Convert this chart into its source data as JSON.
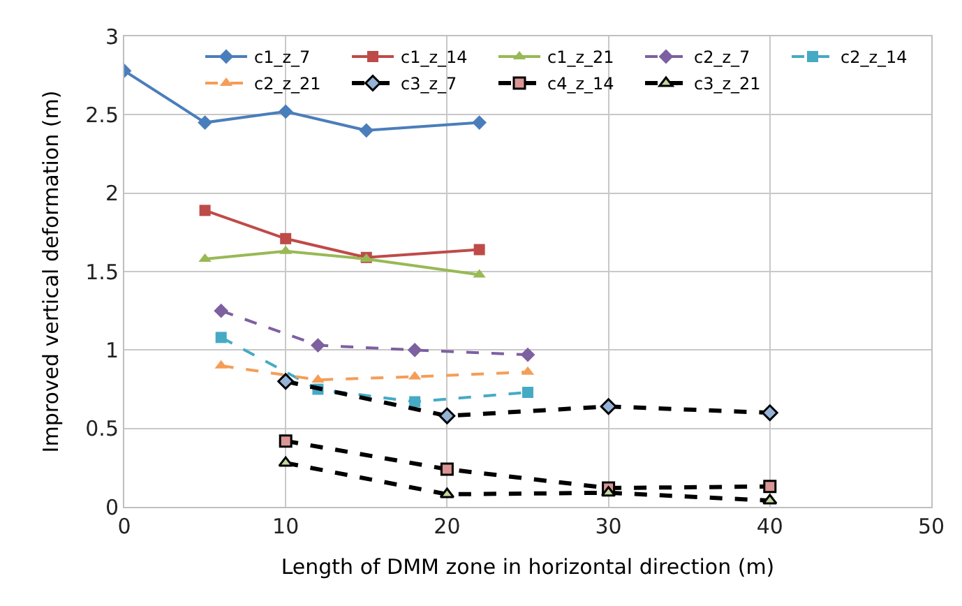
{
  "chart_data": {
    "type": "line",
    "xlabel": "Length of DMM zone in horizontal direction (m)",
    "ylabel": "Improved vertical deformation (m)",
    "xlim": [
      0,
      50
    ],
    "xticks": [
      0,
      10,
      20,
      30,
      40,
      50
    ],
    "ylim": [
      0,
      3
    ],
    "yticks": [
      0,
      0.5,
      1,
      1.5,
      2,
      2.5,
      3
    ],
    "grid": true,
    "legend": "top right",
    "series": [
      {
        "name": "c1_z_7",
        "color": "#4a7ebb",
        "x": [
          0,
          5,
          10,
          15,
          22
        ],
        "values": [
          2.78,
          2.45,
          2.52,
          2.4,
          2.45
        ],
        "marker": "diamond",
        "line_style": "solid"
      },
      {
        "name": "c1_z_14",
        "color": "#be4b48",
        "x": [
          5,
          10,
          15,
          22
        ],
        "values": [
          1.89,
          1.71,
          1.59,
          1.64
        ],
        "marker": "square",
        "line_style": "solid"
      },
      {
        "name": "c1_z_21",
        "color": "#98b954",
        "x": [
          5,
          10,
          15,
          22
        ],
        "values": [
          1.58,
          1.63,
          1.58,
          1.48
        ],
        "marker": "triangle",
        "line_style": "solid"
      },
      {
        "name": "c2_z_7",
        "color": "#7d60a0",
        "x": [
          6,
          12,
          18,
          25
        ],
        "values": [
          1.25,
          1.03,
          1.0,
          0.97
        ],
        "marker": "diamond",
        "line_style": "dashed"
      },
      {
        "name": "c2_z_14",
        "color": "#46aac5",
        "x": [
          6,
          12,
          18,
          25
        ],
        "values": [
          1.08,
          0.75,
          0.67,
          0.73
        ],
        "marker": "square",
        "line_style": "dashed"
      },
      {
        "name": "c2_z_21",
        "color": "#f59d56",
        "x": [
          6,
          12,
          18,
          25
        ],
        "values": [
          0.9,
          0.81,
          0.83,
          0.86
        ],
        "marker": "triangle",
        "line_style": "dashed"
      },
      {
        "name": "c3_z_7",
        "color": "#000000",
        "colors": [
          "#95b3d7",
          "#95b3d7",
          "#95b3d7",
          "#95b3d7"
        ],
        "x": [
          10,
          20,
          30,
          40
        ],
        "values": [
          0.8,
          0.58,
          0.64,
          0.6
        ],
        "marker": "diamond",
        "line_style": "dashed"
      },
      {
        "name": "c4_z_14",
        "color": "#000000",
        "colors": [
          "#d99694",
          "#d99694",
          "#d99694",
          "#d99694"
        ],
        "x": [
          10,
          20,
          30,
          40
        ],
        "values": [
          0.42,
          0.24,
          0.12,
          0.13
        ],
        "marker": "square",
        "line_style": "dashed"
      },
      {
        "name": "c3_z_21",
        "color": "#000000",
        "colors": [
          "#c3d69b",
          "#c3d69b",
          "#c3d69b",
          "#c3d69b"
        ],
        "x": [
          10,
          20,
          30,
          40
        ],
        "values": [
          0.28,
          0.08,
          0.09,
          0.04
        ],
        "marker": "triangle",
        "line_style": "dashed"
      }
    ]
  }
}
